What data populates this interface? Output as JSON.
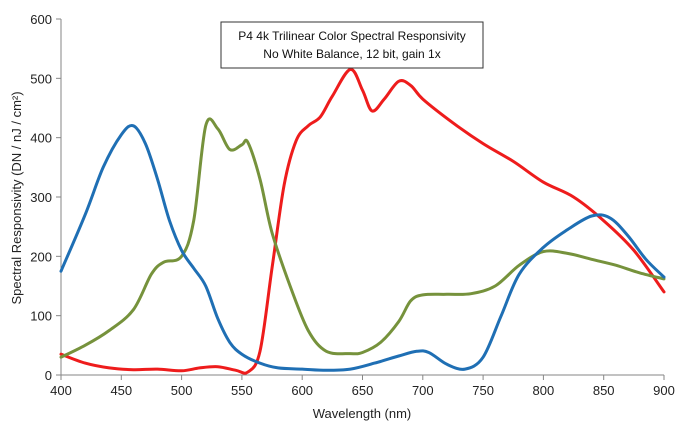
{
  "chart_data": {
    "type": "line",
    "title": "P4 4k Trilinear Color Spectral Responsivity",
    "subtitle": "No White Balance, 12 bit, gain 1x",
    "xlabel": "Wavelength (nm)",
    "ylabel": "Spectral Responsivity (DN / nJ / cm²)",
    "xlim": [
      400,
      900
    ],
    "ylim": [
      0,
      600
    ],
    "x_ticks": [
      "400",
      "450",
      "500",
      "550",
      "600",
      "650",
      "700",
      "750",
      "800",
      "850",
      "900"
    ],
    "y_ticks": [
      "0",
      "100",
      "200",
      "300",
      "400",
      "500",
      "600"
    ],
    "grid": false,
    "legend": "none",
    "series": [
      {
        "color": "#ee1c1c",
        "points": [
          [
            400,
            35
          ],
          [
            420,
            20
          ],
          [
            440,
            12
          ],
          [
            460,
            9
          ],
          [
            480,
            10
          ],
          [
            500,
            7
          ],
          [
            515,
            12
          ],
          [
            530,
            14
          ],
          [
            545,
            8
          ],
          [
            555,
            5
          ],
          [
            565,
            40
          ],
          [
            575,
            180
          ],
          [
            585,
            320
          ],
          [
            595,
            395
          ],
          [
            605,
            420
          ],
          [
            615,
            435
          ],
          [
            625,
            470
          ],
          [
            640,
            515
          ],
          [
            650,
            480
          ],
          [
            658,
            445
          ],
          [
            668,
            465
          ],
          [
            680,
            495
          ],
          [
            690,
            488
          ],
          [
            700,
            465
          ],
          [
            725,
            425
          ],
          [
            750,
            390
          ],
          [
            775,
            360
          ],
          [
            800,
            325
          ],
          [
            825,
            300
          ],
          [
            850,
            260
          ],
          [
            875,
            210
          ],
          [
            900,
            140
          ]
        ]
      },
      {
        "color": "#76923c",
        "points": [
          [
            400,
            30
          ],
          [
            420,
            50
          ],
          [
            440,
            75
          ],
          [
            460,
            110
          ],
          [
            475,
            170
          ],
          [
            485,
            190
          ],
          [
            500,
            200
          ],
          [
            510,
            260
          ],
          [
            520,
            420
          ],
          [
            530,
            415
          ],
          [
            540,
            380
          ],
          [
            550,
            388
          ],
          [
            555,
            392
          ],
          [
            565,
            330
          ],
          [
            575,
            240
          ],
          [
            590,
            150
          ],
          [
            605,
            75
          ],
          [
            620,
            40
          ],
          [
            640,
            36
          ],
          [
            650,
            38
          ],
          [
            665,
            55
          ],
          [
            680,
            90
          ],
          [
            690,
            125
          ],
          [
            700,
            135
          ],
          [
            720,
            136
          ],
          [
            740,
            137
          ],
          [
            760,
            150
          ],
          [
            780,
            185
          ],
          [
            800,
            208
          ],
          [
            820,
            205
          ],
          [
            840,
            195
          ],
          [
            860,
            185
          ],
          [
            880,
            172
          ],
          [
            900,
            162
          ]
        ]
      },
      {
        "color": "#1f6fb4",
        "points": [
          [
            400,
            175
          ],
          [
            420,
            270
          ],
          [
            435,
            350
          ],
          [
            450,
            405
          ],
          [
            460,
            420
          ],
          [
            470,
            390
          ],
          [
            480,
            330
          ],
          [
            490,
            260
          ],
          [
            500,
            210
          ],
          [
            510,
            180
          ],
          [
            520,
            150
          ],
          [
            530,
            95
          ],
          [
            540,
            55
          ],
          [
            550,
            35
          ],
          [
            565,
            20
          ],
          [
            580,
            12
          ],
          [
            600,
            10
          ],
          [
            620,
            8
          ],
          [
            640,
            10
          ],
          [
            660,
            20
          ],
          [
            680,
            32
          ],
          [
            695,
            40
          ],
          [
            705,
            38
          ],
          [
            720,
            18
          ],
          [
            735,
            10
          ],
          [
            750,
            30
          ],
          [
            765,
            100
          ],
          [
            780,
            170
          ],
          [
            800,
            215
          ],
          [
            820,
            245
          ],
          [
            840,
            268
          ],
          [
            855,
            265
          ],
          [
            870,
            235
          ],
          [
            885,
            195
          ],
          [
            900,
            165
          ]
        ]
      }
    ]
  }
}
